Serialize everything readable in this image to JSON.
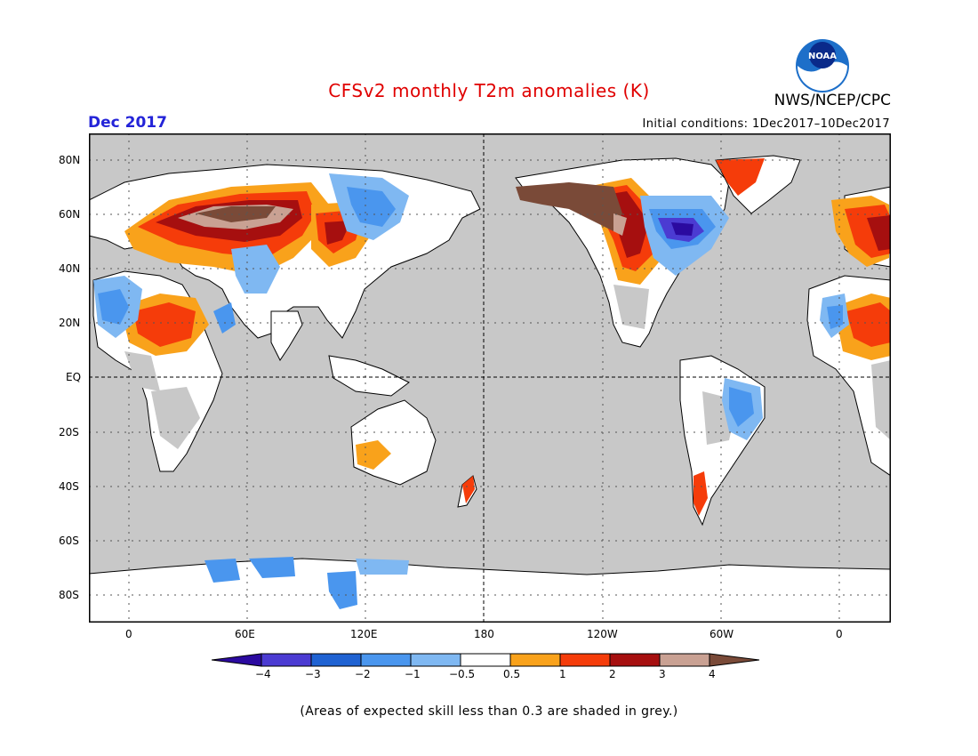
{
  "header": {
    "title": "CFSv2 monthly T2m anomalies (K)",
    "org": "NWS/NCEP/CPC",
    "month": "Dec 2017",
    "initial_conditions": "Initial conditions: 1Dec2017–10Dec2017",
    "logo_text": "NOAA"
  },
  "map": {
    "lat_labels": [
      "80N",
      "60N",
      "40N",
      "20N",
      "EQ",
      "20S",
      "40S",
      "60S",
      "80S"
    ],
    "lon_labels": [
      "0",
      "60E",
      "120E",
      "180",
      "120W",
      "60W",
      "0"
    ],
    "ocean_color": "#c8c8c8",
    "land_no_signal_color": "#ffffff"
  },
  "colorbar": {
    "tick_labels": [
      "−4",
      "−3",
      "−2",
      "−1",
      "−0.5",
      "0.5",
      "1",
      "2",
      "3",
      "4"
    ],
    "colors": [
      "#2b0aa0",
      "#4b3bd2",
      "#1f62d2",
      "#4a96ee",
      "#7fb8f2",
      "#ffffff",
      "#f9a21b",
      "#f53c0a",
      "#a60f0f",
      "#c9a193",
      "#7a4a38"
    ]
  },
  "footnote": "(Areas of expected skill less than 0.3 are shaded in grey.)"
}
